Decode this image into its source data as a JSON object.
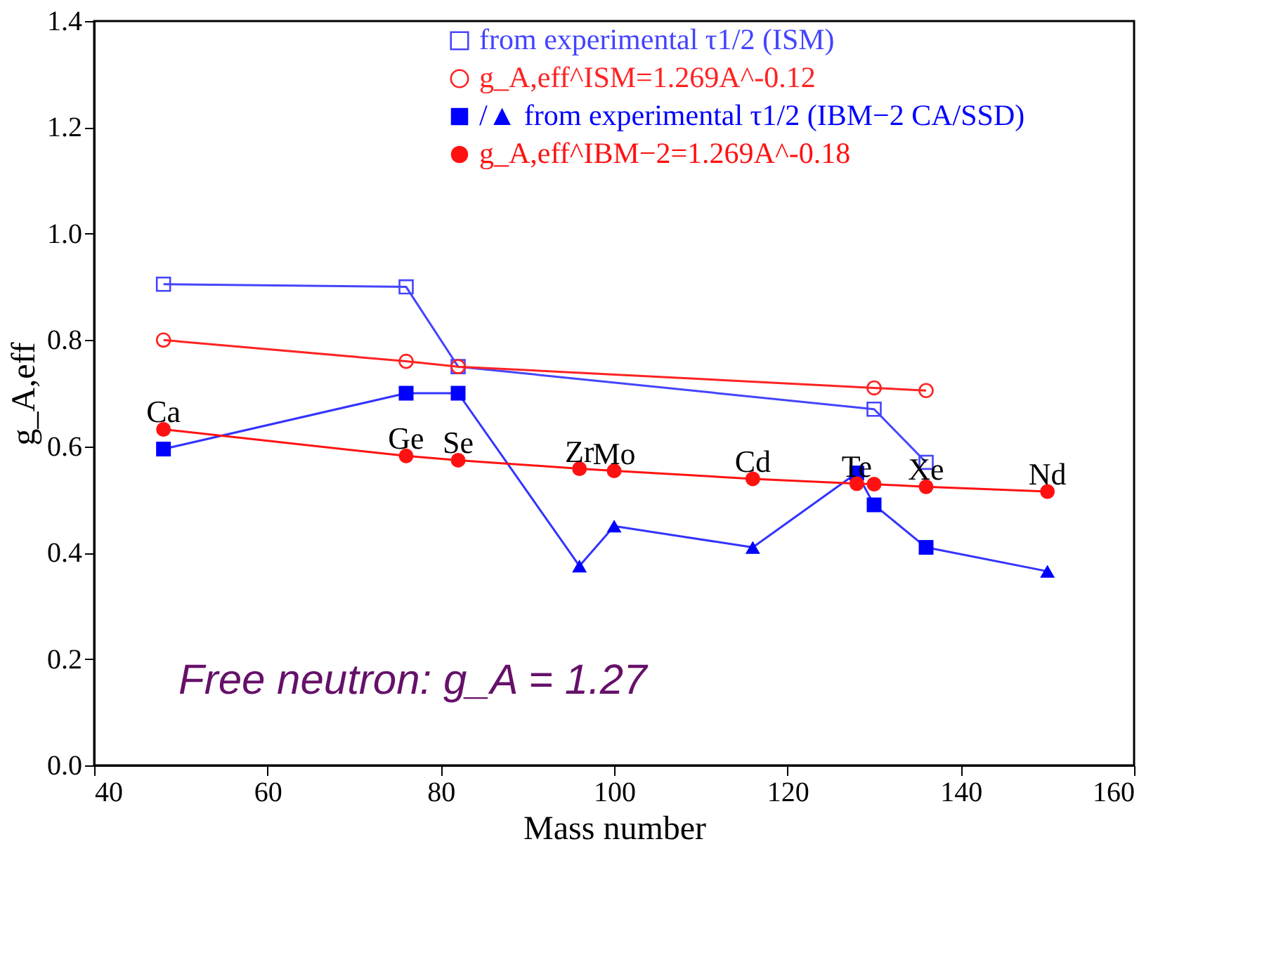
{
  "chart_data": {
    "type": "line",
    "xlabel": "Mass number",
    "ylabel": "g_A,eff",
    "xlim": [
      40,
      160
    ],
    "xticks": [
      40,
      60,
      80,
      100,
      120,
      140,
      160
    ],
    "ylim": [
      0,
      1.4
    ],
    "yticks": [
      {
        "value": 0,
        "label": "0.0"
      },
      {
        "value": 0.2,
        "label": "0.2"
      },
      {
        "value": 0.4,
        "label": "0.4"
      },
      {
        "value": 0.6,
        "label": "0.6"
      },
      {
        "value": 0.8,
        "label": "0.8"
      },
      {
        "value": 1.0,
        "label": "1.0"
      },
      {
        "value": 1.2,
        "label": "1.2"
      },
      {
        "value": 1.4,
        "label": "1.4"
      }
    ],
    "grid": false,
    "legend": "top right",
    "line_style": "solid",
    "series": [
      {
        "name": "from experimental τ1/2 (ISM)",
        "color": "#4444ff",
        "marker": "square",
        "x": [
          48,
          76,
          82,
          130,
          136
        ],
        "values": [
          0.905,
          0.9,
          0.75,
          0.67,
          0.57
        ]
      },
      {
        "name": "g_A,eff^ISM=1.269A^-0.12",
        "color": "#ff2222",
        "marker": "circle",
        "x": [
          48,
          76,
          82,
          130,
          136
        ],
        "values": [
          0.8,
          0.76,
          0.75,
          0.71,
          0.705
        ]
      },
      {
        "color": "#3333ff",
        "marker": "none",
        "x": [
          48,
          76,
          82,
          96,
          100,
          116,
          128,
          130,
          136,
          150
        ],
        "values": [
          0.595,
          0.7,
          0.7,
          0.375,
          0.45,
          0.41,
          0.55,
          0.49,
          0.41,
          0.365
        ]
      },
      {
        "name": "/▲ from experimental τ1/2 (IBM−2 CA/SSD)",
        "type": "scatter",
        "color": "#0000ff",
        "marker": "square",
        "x": [
          48,
          76,
          82,
          128,
          130,
          136
        ],
        "values": [
          0.595,
          0.7,
          0.7,
          0.55,
          0.49,
          0.41
        ]
      },
      {
        "type": "scatter",
        "color": "#0000ff",
        "marker": "triangle",
        "x": [
          96,
          100,
          116,
          150
        ],
        "values": [
          0.375,
          0.45,
          0.41,
          0.365
        ]
      },
      {
        "color": "#ff1111",
        "marker": "none",
        "x": [
          48,
          76,
          82,
          96,
          100,
          116,
          128,
          130,
          136,
          150
        ],
        "values": [
          0.632,
          0.582,
          0.574,
          0.558,
          0.554,
          0.539,
          0.53,
          0.529,
          0.524,
          0.515
        ]
      },
      {
        "name": "g_A,eff^IBM−2=1.269A^-0.18",
        "type": "scatter",
        "color": "#ff1111",
        "marker": "circle",
        "x": [
          48,
          76,
          82,
          96,
          100,
          116,
          128,
          130,
          136,
          150
        ],
        "values": [
          0.632,
          0.582,
          0.574,
          0.558,
          0.554,
          0.539,
          0.53,
          0.529,
          0.524,
          0.515
        ]
      }
    ],
    "annotations": [
      {
        "text": "Ca",
        "x": 48,
        "y": 0.632
      },
      {
        "text": "Ge",
        "x": 76,
        "y": 0.582
      },
      {
        "text": "Se",
        "x": 82,
        "y": 0.574
      },
      {
        "text": "Zr",
        "x": 96,
        "y": 0.558
      },
      {
        "text": "Mo",
        "x": 100,
        "y": 0.554
      },
      {
        "text": "Cd",
        "x": 116,
        "y": 0.539
      },
      {
        "text": "Te",
        "x": 128,
        "y": 0.53
      },
      {
        "text": "Xe",
        "x": 136,
        "y": 0.524
      },
      {
        "text": "Nd",
        "x": 150,
        "y": 0.515
      },
      "Free neutron: g_A = 1.27"
    ]
  }
}
